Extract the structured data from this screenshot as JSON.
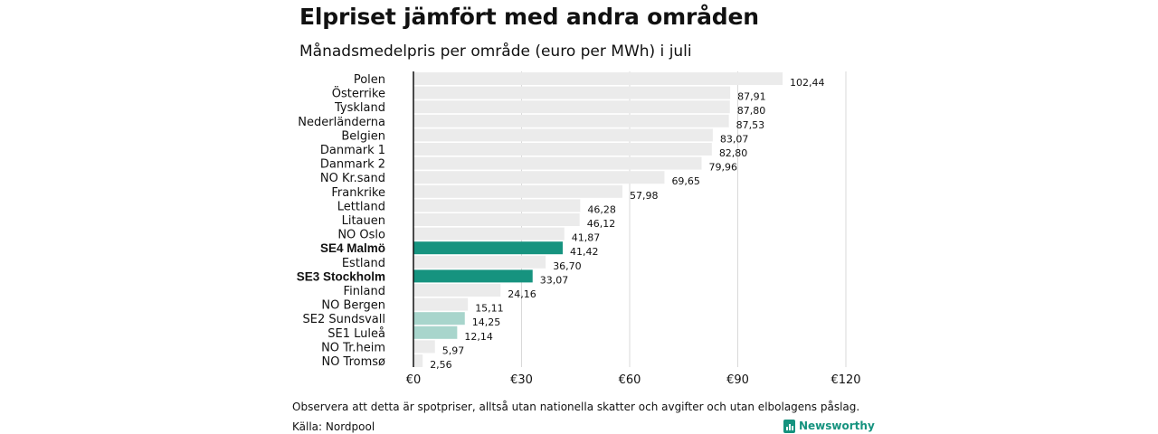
{
  "title": "Elpriset jämfört med andra områden",
  "subtitle": "Månadsmedelpris per område (euro per MWh) i juli",
  "note": "Observera att detta är spotpriser, alltså utan nationella skatter och avgifter och utan elbolagens påslag.",
  "source": "Källa: Nordpool",
  "brand": "Newsworthy",
  "colors": {
    "default_bar": "#ebebeb",
    "highlight_bar": "#16937f",
    "light_highlight_bar": "#a8d5cc",
    "gridline": "#d9d9d9",
    "brand": "#16937f"
  },
  "chart_data": {
    "type": "bar",
    "orientation": "horizontal",
    "categories": [
      "Polen",
      "Österrike",
      "Tyskland",
      "Nederländerna",
      "Belgien",
      "Danmark  1",
      "Danmark  2",
      "NO Kr.sand",
      "Frankrike",
      "Lettland",
      "Litauen",
      "NO Oslo",
      "SE4 Malmö",
      "Estland",
      "SE3 Stockholm",
      "Finland",
      "NO Bergen",
      "SE2  Sundsvall",
      "SE1  Luleå",
      "NO Tr.heim",
      "NO Tromsø"
    ],
    "values": [
      102.44,
      87.91,
      87.8,
      87.53,
      83.07,
      82.8,
      79.96,
      69.65,
      57.98,
      46.28,
      46.12,
      41.87,
      41.42,
      36.7,
      33.07,
      24.16,
      15.11,
      14.25,
      12.14,
      5.97,
      2.56
    ],
    "value_labels": [
      "102,44",
      "87,91",
      "87,80",
      "87,53",
      "83,07",
      "82,80",
      "79,96",
      "69,65",
      "57,98",
      "46,28",
      "46,12",
      "41,87",
      "41,42",
      "36,70",
      "33,07",
      "24,16",
      "15,11",
      "14,25",
      "12,14",
      "5,97",
      "2,56"
    ],
    "highlight": [
      "default",
      "default",
      "default",
      "default",
      "default",
      "default",
      "default",
      "default",
      "default",
      "default",
      "default",
      "default",
      "strong",
      "default",
      "strong",
      "default",
      "default",
      "light",
      "light",
      "default",
      "default"
    ],
    "xticks": [
      0,
      30,
      60,
      90,
      120
    ],
    "xtick_labels": [
      "€0",
      "€30",
      "€60",
      "€90",
      "€120"
    ],
    "xlim": [
      0,
      120
    ],
    "grid": true
  }
}
